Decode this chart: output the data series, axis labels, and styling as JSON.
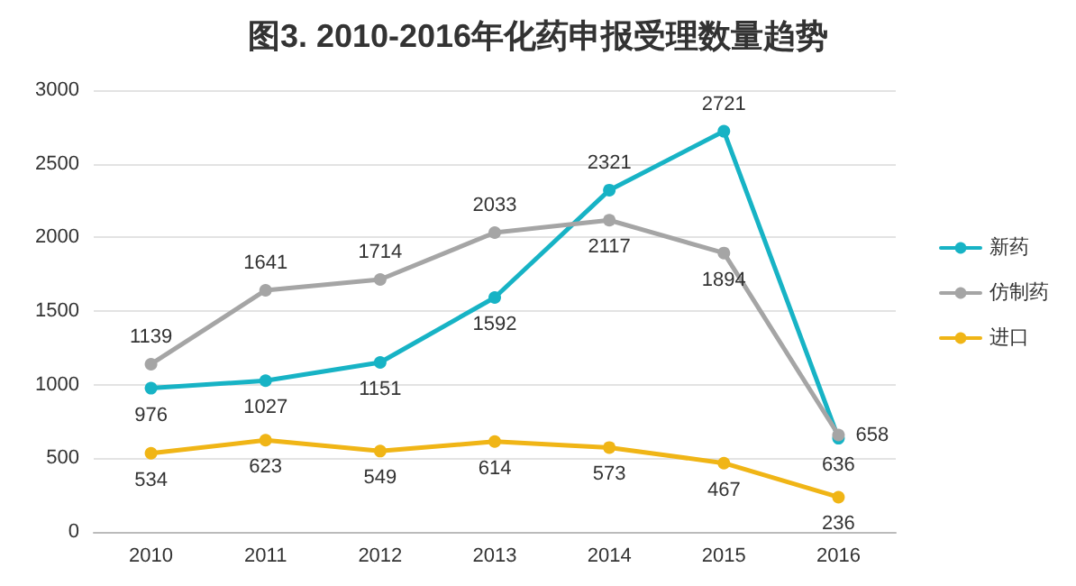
{
  "chart_data": {
    "type": "line",
    "title": "图3. 2010-2016年化药申报受理数量趋势",
    "categories": [
      "2010",
      "2011",
      "2012",
      "2013",
      "2014",
      "2015",
      "2016"
    ],
    "series": [
      {
        "name": "新药",
        "color": "#17b3c5",
        "values": [
          976,
          1027,
          1151,
          1592,
          2321,
          2721,
          636
        ]
      },
      {
        "name": "仿制药",
        "color": "#a5a5a5",
        "values": [
          1139,
          1641,
          1714,
          2033,
          2117,
          1894,
          658
        ]
      },
      {
        "name": "进口",
        "color": "#f0b516",
        "values": [
          534,
          623,
          549,
          614,
          573,
          467,
          236
        ]
      }
    ],
    "ylim": [
      0,
      3000
    ],
    "yticks": [
      0,
      500,
      1000,
      1500,
      2000,
      2500,
      3000
    ],
    "grid": "y",
    "legend": "right",
    "marker": "circle",
    "line_style": "solid",
    "data_labels": true
  }
}
